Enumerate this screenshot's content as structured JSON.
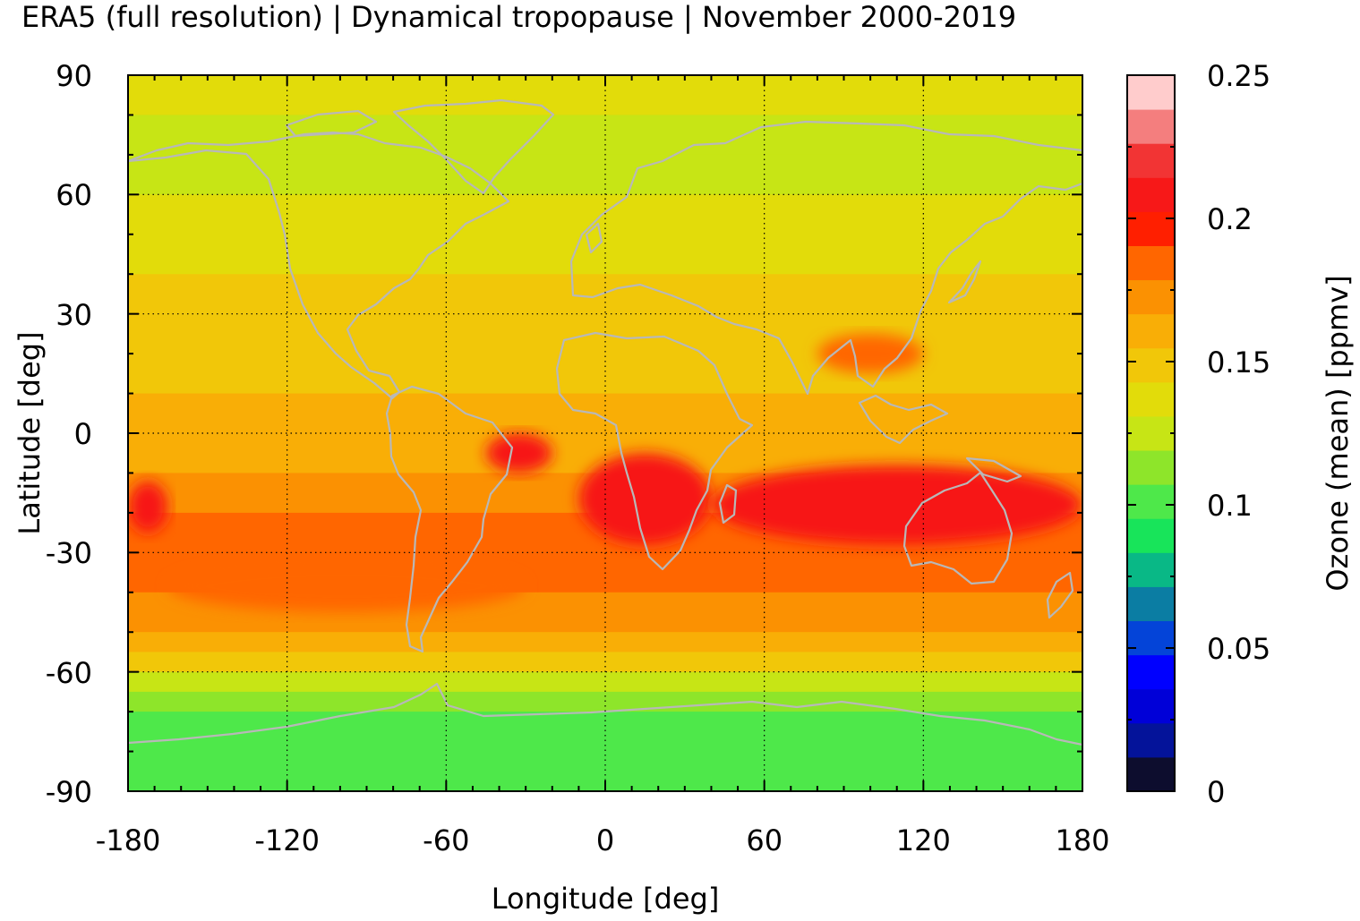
{
  "title": "ERA5 (full resolution) | Dynamical tropopause | November 2000-2019",
  "map": {
    "xlabel": "Longitude [deg]",
    "ylabel": "Latitude [deg]",
    "xlim": [
      -180,
      180
    ],
    "ylim": [
      -90,
      90
    ],
    "xticks": [
      "-180",
      "-120",
      "-60",
      "0",
      "60",
      "120",
      "180"
    ],
    "yticks": [
      "90",
      "60",
      "30",
      "0",
      "-30",
      "-60",
      "-90"
    ],
    "grid": "dotted",
    "coastline_color": "#b8b8b8"
  },
  "colorbar": {
    "label": "Ozone (mean) [ppmv]",
    "ticks": [
      "0.25",
      "0.2",
      "0.15",
      "0.1",
      "0.05",
      "0"
    ],
    "tick_values": [
      0.25,
      0.2,
      0.15,
      0.1,
      0.05,
      0
    ],
    "range": [
      0,
      0.25
    ],
    "colors": [
      "#0d0d2e",
      "#04139a",
      "#0000d8",
      "#0000ff",
      "#0444d8",
      "#0b7da3",
      "#09b886",
      "#18e45a",
      "#4ee84a",
      "#8ee52a",
      "#c7e515",
      "#e2dc0a",
      "#f1c709",
      "#f9ae06",
      "#fb9102",
      "#ff6600",
      "#ff1f00",
      "#f71818",
      "#f23434",
      "#f47e7e",
      "#ffcccc"
    ]
  },
  "chart_data": {
    "type": "heatmap",
    "title": "ERA5 (full resolution) | Dynamical tropopause | November 2000-2019",
    "xlabel": "Longitude [deg]",
    "ylabel": "Latitude [deg]",
    "xlim": [
      -180,
      180
    ],
    "ylim": [
      -90,
      90
    ],
    "zlabel": "Ozone (mean) [ppmv]",
    "zlim": [
      0,
      0.25
    ],
    "zonal_mean_profile": {
      "lat": [
        90,
        80,
        70,
        60,
        50,
        40,
        30,
        20,
        10,
        0,
        -10,
        -20,
        -25,
        -30,
        -40,
        -50,
        -55,
        -60,
        -65,
        -70,
        -80,
        -90
      ],
      "ozone": [
        0.14,
        0.13,
        0.125,
        0.135,
        0.14,
        0.15,
        0.145,
        0.15,
        0.155,
        0.16,
        0.175,
        0.185,
        0.19,
        0.185,
        0.175,
        0.16,
        0.145,
        0.13,
        0.115,
        0.105,
        0.105,
        0.105
      ]
    },
    "features": [
      {
        "lon": [
          -45,
          -20
        ],
        "lat": [
          -10,
          0
        ],
        "ozone": 0.205
      },
      {
        "lon": [
          -10,
          40
        ],
        "lat": [
          -28,
          -5
        ],
        "ozone": 0.205
      },
      {
        "lon": [
          40,
          180
        ],
        "lat": [
          -28,
          -8
        ],
        "ozone": 0.205
      },
      {
        "lon": [
          -180,
          -165
        ],
        "lat": [
          -25,
          -12
        ],
        "ozone": 0.205
      },
      {
        "lon": [
          80,
          120
        ],
        "lat": [
          15,
          25
        ],
        "ozone": 0.18
      },
      {
        "lon": [
          -165,
          -30
        ],
        "lat": [
          -45,
          -32
        ],
        "ozone": 0.18
      }
    ]
  }
}
